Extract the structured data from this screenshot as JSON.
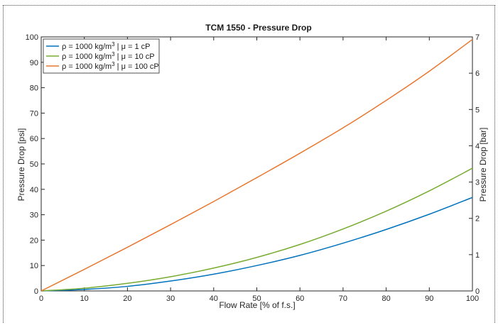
{
  "chart_data": {
    "type": "line",
    "title": "TCM 1550 - Pressure Drop",
    "xlabel": "Flow Rate [% of f.s.]",
    "ylabel": "Pressure Drop [psi]",
    "ylabel_right": "Pressure Drop [bar]",
    "xlim": [
      0,
      100
    ],
    "ylim": [
      0,
      100
    ],
    "ylim_right": [
      0,
      7
    ],
    "x_ticks": [
      "0",
      "10",
      "20",
      "30",
      "40",
      "50",
      "60",
      "70",
      "80",
      "90",
      "100"
    ],
    "y_ticks": [
      "0",
      "10",
      "20",
      "30",
      "40",
      "50",
      "60",
      "70",
      "80",
      "90",
      "100"
    ],
    "y_ticks_right": [
      "0",
      "1",
      "2",
      "3",
      "4",
      "5",
      "6",
      "7"
    ],
    "grid": false,
    "legend_position": "top-left",
    "x": [
      0,
      10,
      20,
      30,
      40,
      50,
      60,
      70,
      80,
      90,
      100
    ],
    "series": [
      {
        "label_main": "ρ = 1000 kg/m",
        "label_sup": "3",
        "label_rest": " | μ = 1 cP",
        "color": "#0072BD",
        "values": [
          0,
          0.6,
          1.8,
          3.9,
          6.6,
          10.0,
          14.0,
          18.8,
          24.2,
          30.2,
          36.8
        ]
      },
      {
        "label_main": "ρ = 1000 kg/m",
        "label_sup": "3",
        "label_rest": " | μ = 10 cP",
        "color": "#77AC30",
        "values": [
          0,
          1.1,
          3.0,
          5.6,
          9.0,
          13.2,
          18.3,
          24.4,
          31.4,
          39.4,
          48.3
        ]
      },
      {
        "label_main": "ρ = 1000 kg/m",
        "label_sup": "3",
        "label_rest": " | μ = 100 cP",
        "color": "#E8772E",
        "values": [
          0,
          8.5,
          17.2,
          26.1,
          35.2,
          44.6,
          54.2,
          64.2,
          75.0,
          86.5,
          99.0
        ]
      }
    ]
  }
}
